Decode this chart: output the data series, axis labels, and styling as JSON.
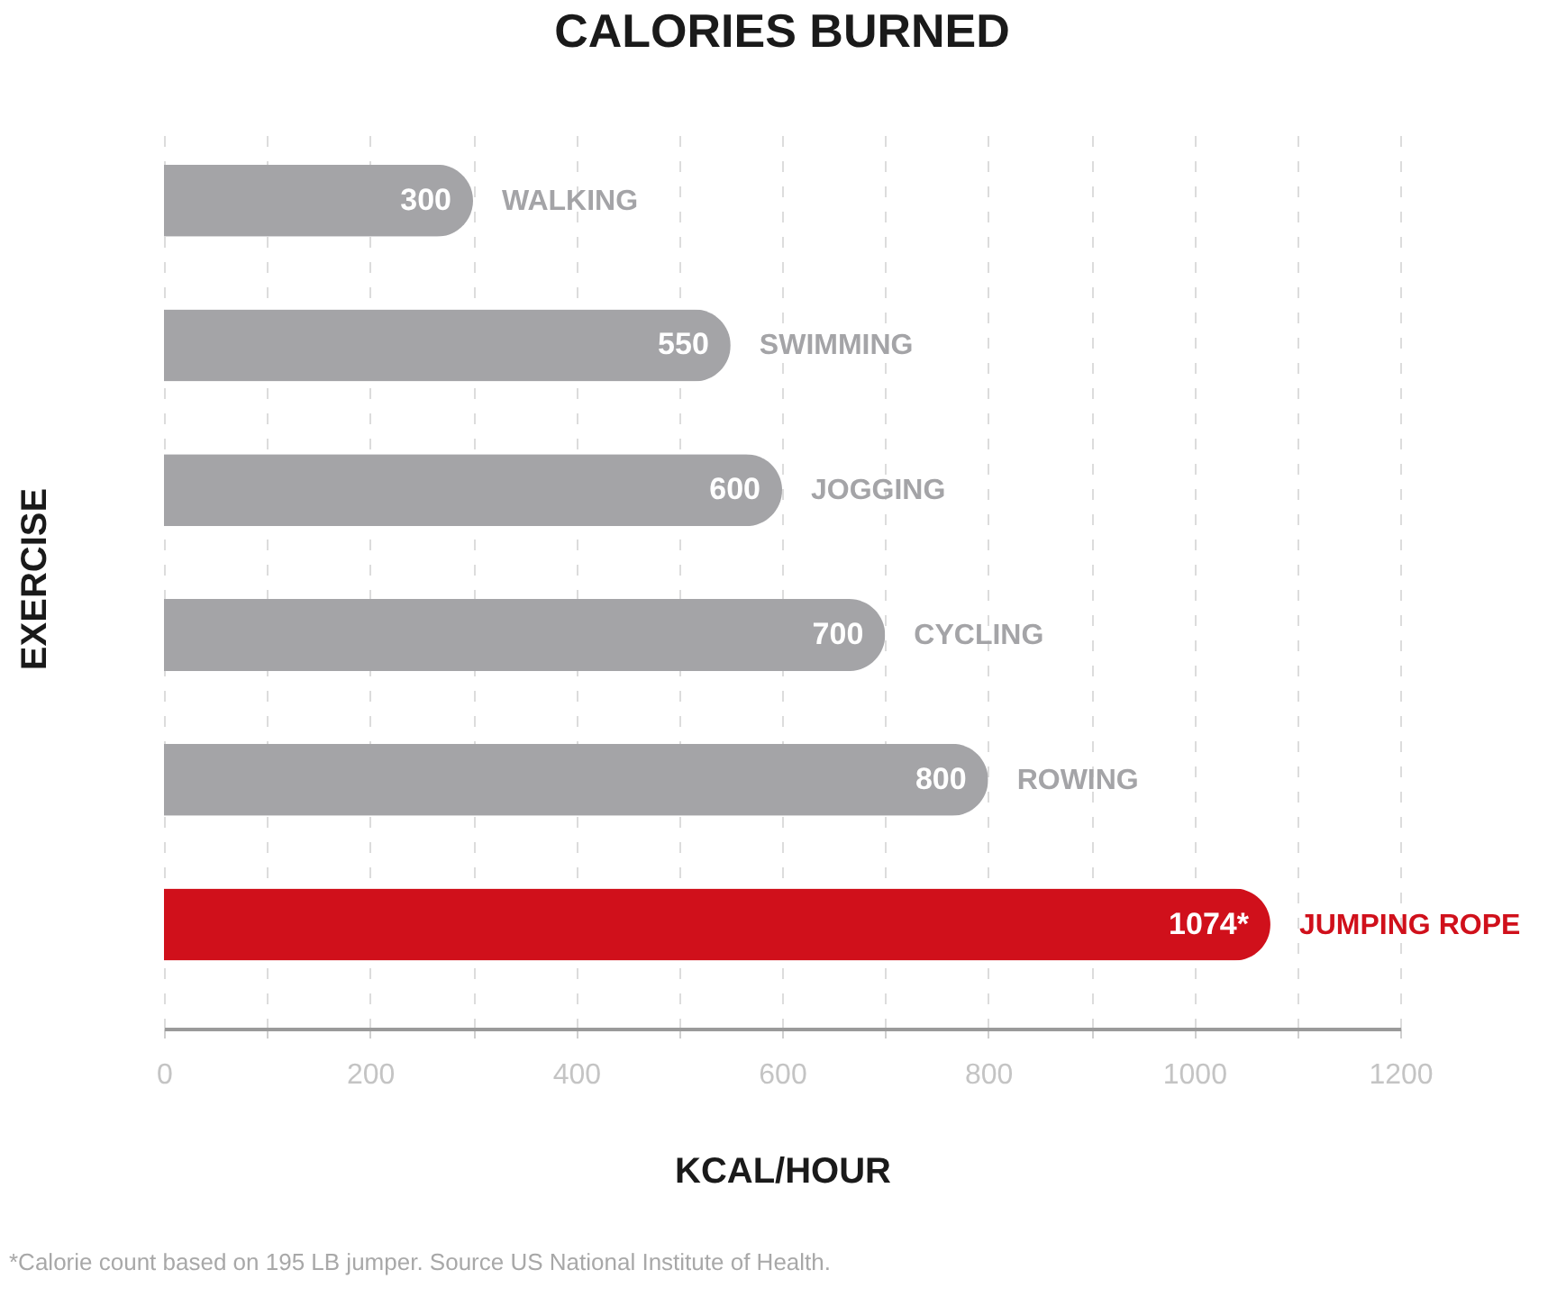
{
  "chart_data": {
    "type": "bar",
    "orientation": "horizontal",
    "title": "CALORIES BURNED",
    "xlabel": "KCAL/HOUR",
    "ylabel": "EXERCISE",
    "categories": [
      "WALKING",
      "SWIMMING",
      "JOGGING",
      "CYCLING",
      "ROWING",
      "JUMPING ROPE"
    ],
    "values": [
      300,
      550,
      600,
      700,
      800,
      1074
    ],
    "value_labels": [
      "300",
      "550",
      "600",
      "700",
      "800",
      "1074*"
    ],
    "colors": [
      "#a4a4a7",
      "#a4a4a7",
      "#a4a4a7",
      "#a4a4a7",
      "#a4a4a7",
      "#d0101b"
    ],
    "xlim": [
      0,
      1200
    ],
    "xticks": [
      0,
      {
        "value": 100,
        "label": null
      },
      200,
      {
        "value": 300,
        "label": null
      },
      400,
      {
        "value": 500,
        "label": null
      },
      600,
      {
        "value": 700,
        "label": null
      },
      800,
      {
        "value": 900,
        "label": null
      },
      1000,
      {
        "value": 1100,
        "label": null
      },
      1200
    ],
    "grid": "x",
    "annotations": [
      "*Calorie count based on 195 LB jumper. Source US National Institute of Health."
    ]
  }
}
